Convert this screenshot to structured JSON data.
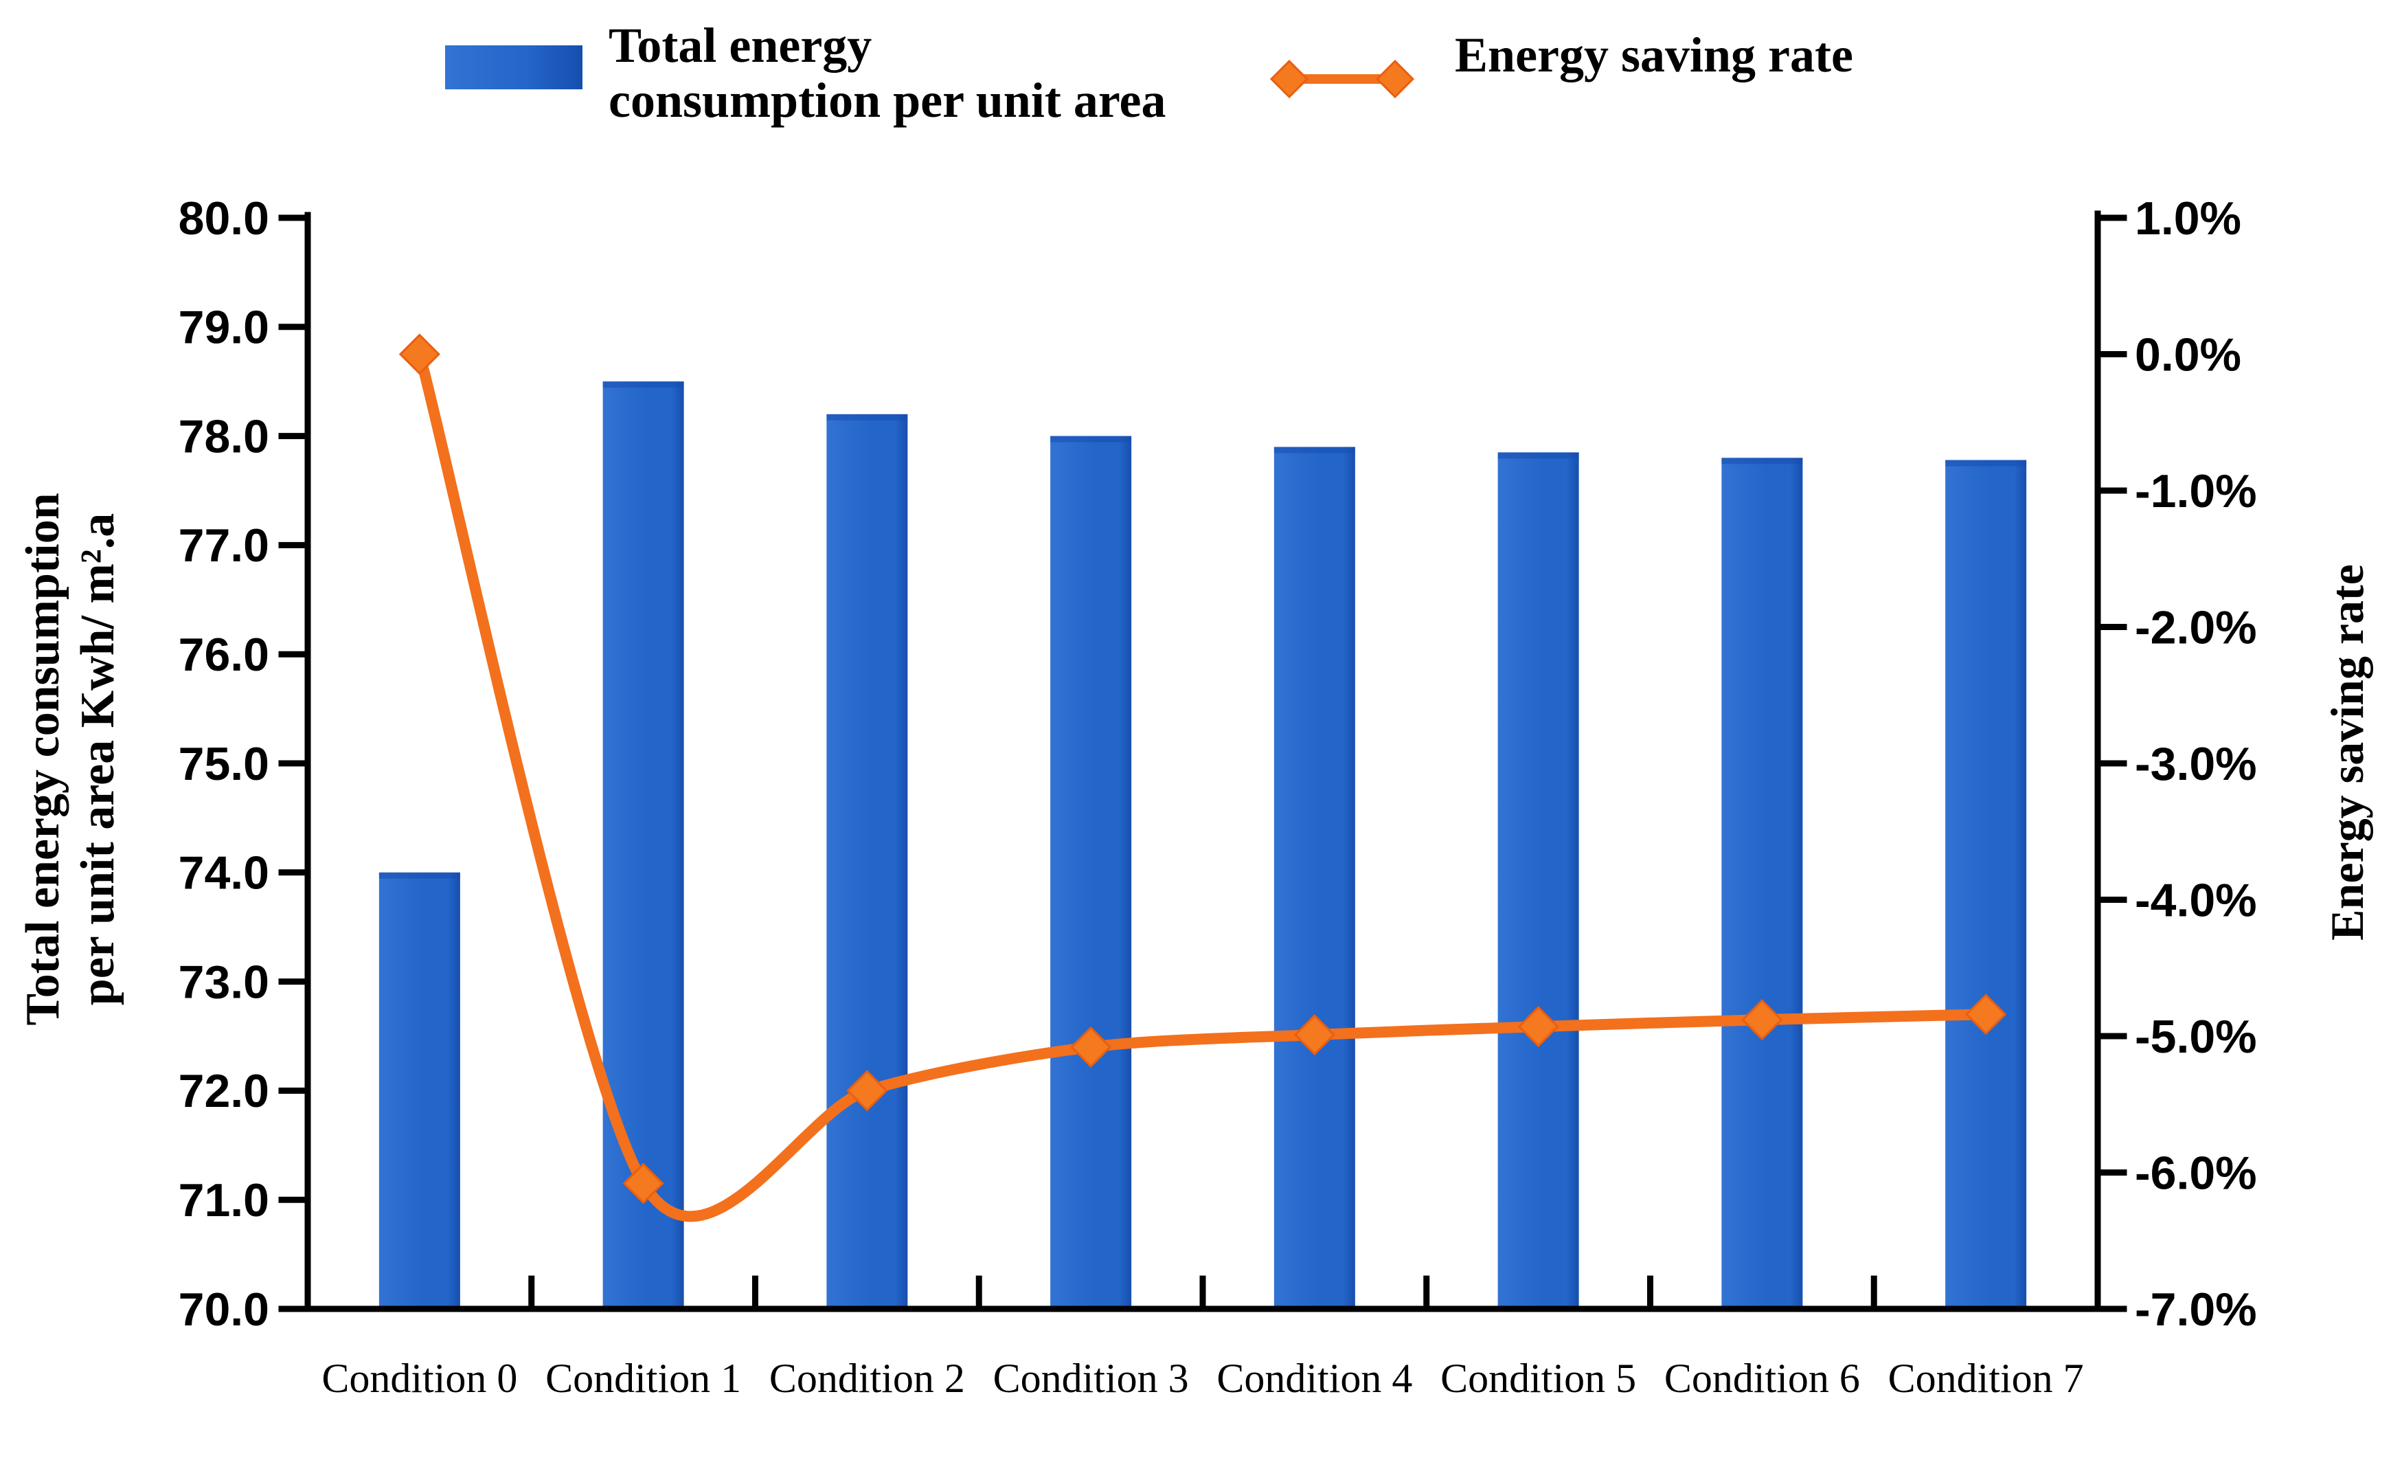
{
  "figure": {
    "background": "#ffffff",
    "text_color": "#000000",
    "axis_color": "#000000"
  },
  "legend": {
    "position": "top",
    "items": [
      {
        "label": "Total energy consumption per unit area",
        "label_display": "Total energy\nconsumption per unit area",
        "swatch": "bar-square",
        "color": "#2365c9",
        "color_light": "#3273d3",
        "color_dark": "#174fae"
      },
      {
        "label": "Energy saving rate",
        "label_display": "Energy saving rate",
        "swatch": "line-with-diamonds",
        "color": "#f3701d",
        "marker_fill": "#f5791f",
        "marker_stroke": "#e95f10"
      }
    ]
  },
  "chart_data": {
    "type": "bar+line combo",
    "title": "",
    "grid": false,
    "legend_position": "top",
    "categories": [
      "Condition 0",
      "Condition 1",
      "Condition 2",
      "Condition 3",
      "Condition 4",
      "Condition 5",
      "Condition 6",
      "Condition 7"
    ],
    "series": [
      {
        "name": "Total energy consumption per unit area",
        "type": "bar",
        "axis": "left",
        "color": "#2365c9",
        "color_light": "#3273d3",
        "color_dark": "#174fae",
        "values": [
          74.0,
          78.5,
          78.2,
          78.0,
          77.9,
          77.85,
          77.8,
          77.78
        ]
      },
      {
        "name": "Energy saving rate",
        "type": "line",
        "axis": "right",
        "marker": "diamond",
        "color": "#f3701d",
        "marker_fill": "#f5791f",
        "marker_stroke": "#e95f10",
        "values_percent": [
          0.0,
          -6.08,
          -5.4,
          -5.08,
          -4.99,
          -4.93,
          -4.88,
          -4.84
        ]
      }
    ],
    "left_axis": {
      "title": "Total energy consumption per unit area Kwh/ m².a",
      "title_lines": [
        "Total energy consumption",
        "per unit area Kwh/ m².a"
      ],
      "min": 70.0,
      "max": 80.0,
      "tick_step": 1.0,
      "tick_labels": [
        "80.0",
        "79.0",
        "78.0",
        "77.0",
        "76.0",
        "75.0",
        "74.0",
        "73.0",
        "72.0",
        "71.0",
        "70.0"
      ]
    },
    "right_axis": {
      "title": "Energy saving rate",
      "min": -7.0,
      "max": 1.0,
      "tick_step": 1.0,
      "tick_labels": [
        "1.0%",
        "0.0%",
        "-1.0%",
        "-2.0%",
        "-3.0%",
        "-4.0%",
        "-5.0%",
        "-6.0%",
        "-7.0%"
      ]
    },
    "x_axis": {
      "tick_labels": [
        "Condition 0",
        "Condition 1",
        "Condition 2",
        "Condition 3",
        "Condition 4",
        "Condition 5",
        "Condition 6",
        "Condition 7"
      ]
    }
  }
}
